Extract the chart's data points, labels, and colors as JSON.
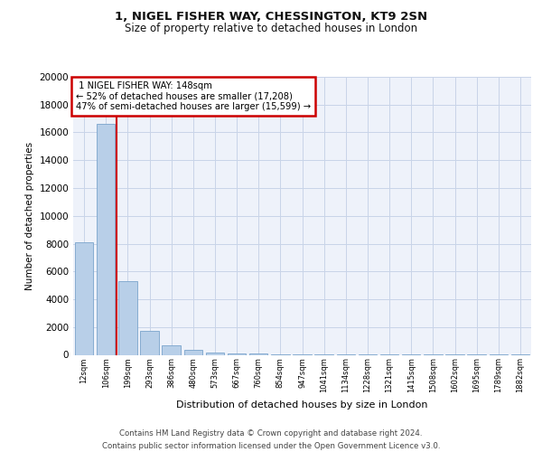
{
  "title_line1": "1, NIGEL FISHER WAY, CHESSINGTON, KT9 2SN",
  "title_line2": "Size of property relative to detached houses in London",
  "xlabel": "Distribution of detached houses by size in London",
  "ylabel": "Number of detached properties",
  "categories": [
    "12sqm",
    "106sqm",
    "199sqm",
    "293sqm",
    "386sqm",
    "480sqm",
    "573sqm",
    "667sqm",
    "760sqm",
    "854sqm",
    "947sqm",
    "1041sqm",
    "1134sqm",
    "1228sqm",
    "1321sqm",
    "1415sqm",
    "1508sqm",
    "1602sqm",
    "1695sqm",
    "1789sqm",
    "1882sqm"
  ],
  "values": [
    8100,
    16600,
    5300,
    1750,
    700,
    350,
    190,
    120,
    80,
    60,
    45,
    35,
    25,
    20,
    15,
    12,
    10,
    8,
    6,
    5,
    4
  ],
  "bar_color": "#b8cfe8",
  "bar_edge_color": "#7aA4CC",
  "property_line_x": 1.5,
  "property_label": "1 NIGEL FISHER WAY: 148sqm",
  "pct_smaller": "52% of detached houses are smaller (17,208)",
  "pct_larger": "47% of semi-detached houses are larger (15,599)",
  "annotation_box_color": "#cc0000",
  "property_line_color": "#cc0000",
  "grid_color": "#c8d4e8",
  "bg_color": "#eef2fa",
  "ylim": [
    0,
    20000
  ],
  "yticks": [
    0,
    2000,
    4000,
    6000,
    8000,
    10000,
    12000,
    14000,
    16000,
    18000,
    20000
  ],
  "footer": "Contains HM Land Registry data © Crown copyright and database right 2024.\nContains public sector information licensed under the Open Government Licence v3.0."
}
